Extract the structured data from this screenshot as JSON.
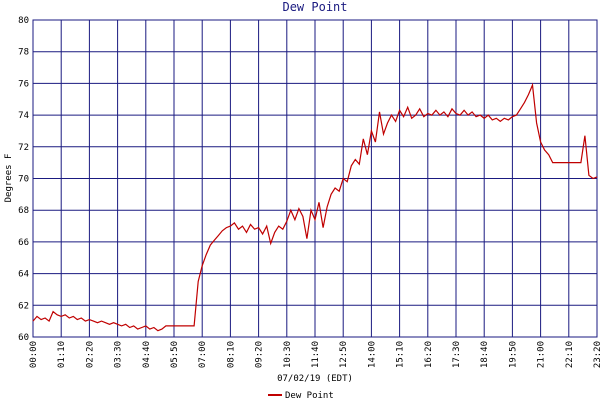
{
  "chart_data": {
    "type": "line",
    "title": "Dew Point",
    "x_label": "07/02/19 (EDT)",
    "y_label": "Degrees F",
    "x": [
      0,
      10,
      20,
      30,
      40,
      50,
      60,
      70,
      80,
      90,
      100,
      110,
      120,
      130,
      140,
      150,
      160,
      170,
      180,
      190,
      200,
      210,
      220,
      230,
      240,
      250,
      260,
      270,
      280,
      290,
      300,
      310,
      320,
      330,
      340,
      350,
      360,
      370,
      380,
      390,
      400,
      410,
      420,
      430,
      440,
      450,
      460,
      470,
      480,
      490,
      500,
      510,
      520,
      530,
      540,
      550,
      560,
      570,
      580,
      590,
      600,
      610,
      620,
      630,
      640,
      650,
      660,
      670,
      680,
      690,
      700,
      710,
      720,
      730,
      740,
      750,
      760,
      770,
      780,
      790,
      800,
      810,
      820,
      830,
      840,
      850,
      860,
      870,
      880,
      890,
      900,
      910,
      920,
      930,
      940,
      950,
      960,
      970,
      980,
      990,
      1000,
      1010,
      1020,
      1030,
      1040,
      1050,
      1060,
      1070,
      1080,
      1090,
      1100,
      1110,
      1120,
      1130,
      1140,
      1150,
      1160,
      1170,
      1180,
      1190,
      1200,
      1210,
      1220,
      1230,
      1240,
      1250,
      1260,
      1270,
      1280,
      1290,
      1300,
      1310,
      1320,
      1330,
      1340,
      1350,
      1360,
      1370,
      1380,
      1390,
      1400
    ],
    "series": [
      {
        "name": "Dew Point",
        "color": "#c00000",
        "values": [
          61.0,
          61.3,
          61.1,
          61.2,
          61.0,
          61.6,
          61.4,
          61.3,
          61.4,
          61.2,
          61.3,
          61.1,
          61.2,
          61.0,
          61.1,
          61.0,
          60.9,
          61.0,
          60.9,
          60.8,
          60.9,
          60.8,
          60.7,
          60.8,
          60.6,
          60.7,
          60.5,
          60.6,
          60.7,
          60.5,
          60.6,
          60.4,
          60.5,
          60.7,
          60.7,
          60.7,
          60.7,
          60.7,
          60.7,
          60.7,
          60.7,
          63.5,
          64.5,
          65.2,
          65.8,
          66.1,
          66.4,
          66.7,
          66.9,
          67.0,
          67.2,
          66.8,
          67.0,
          66.6,
          67.1,
          66.8,
          66.9,
          66.5,
          67.0,
          65.9,
          66.6,
          67.0,
          66.8,
          67.3,
          68.0,
          67.4,
          68.1,
          67.6,
          66.2,
          68.0,
          67.4,
          68.5,
          66.9,
          68.2,
          69.0,
          69.4,
          69.2,
          70.0,
          69.8,
          70.8,
          71.2,
          70.9,
          72.5,
          71.5,
          73.0,
          72.3,
          74.2,
          72.8,
          73.5,
          74.0,
          73.6,
          74.3,
          73.9,
          74.5,
          73.8,
          74.0,
          74.4,
          73.9,
          74.1,
          74.0,
          74.3,
          74.0,
          74.2,
          73.9,
          74.4,
          74.1,
          74.0,
          74.3,
          74.0,
          74.2,
          73.9,
          74.0,
          73.8,
          74.0,
          73.7,
          73.8,
          73.6,
          73.8,
          73.7,
          73.9,
          74.0,
          74.4,
          74.8,
          75.3,
          75.9,
          73.5,
          72.3,
          71.8,
          71.5,
          71.0,
          71.0,
          71.0,
          71.0,
          71.0,
          71.0,
          71.0,
          71.0,
          72.7,
          70.2,
          70.0,
          70.1
        ]
      }
    ],
    "xlim": [
      0,
      1400
    ],
    "xticks": [
      {
        "value": 0,
        "label": "00:00"
      },
      {
        "value": 70,
        "label": "01:10"
      },
      {
        "value": 140,
        "label": "02:20"
      },
      {
        "value": 210,
        "label": "03:30"
      },
      {
        "value": 280,
        "label": "04:40"
      },
      {
        "value": 350,
        "label": "05:50"
      },
      {
        "value": 420,
        "label": "07:00"
      },
      {
        "value": 490,
        "label": "08:10"
      },
      {
        "value": 560,
        "label": "09:20"
      },
      {
        "value": 630,
        "label": "10:30"
      },
      {
        "value": 700,
        "label": "11:40"
      },
      {
        "value": 770,
        "label": "12:50"
      },
      {
        "value": 840,
        "label": "14:00"
      },
      {
        "value": 910,
        "label": "15:10"
      },
      {
        "value": 980,
        "label": "16:20"
      },
      {
        "value": 1050,
        "label": "17:30"
      },
      {
        "value": 1120,
        "label": "18:40"
      },
      {
        "value": 1190,
        "label": "19:50"
      },
      {
        "value": 1260,
        "label": "21:00"
      },
      {
        "value": 1330,
        "label": "22:10"
      },
      {
        "value": 1400,
        "label": "23:20"
      }
    ],
    "ylim": [
      60,
      80
    ],
    "yticks": [
      60,
      62,
      64,
      66,
      68,
      70,
      72,
      74,
      76,
      78,
      80
    ],
    "grid": true
  }
}
